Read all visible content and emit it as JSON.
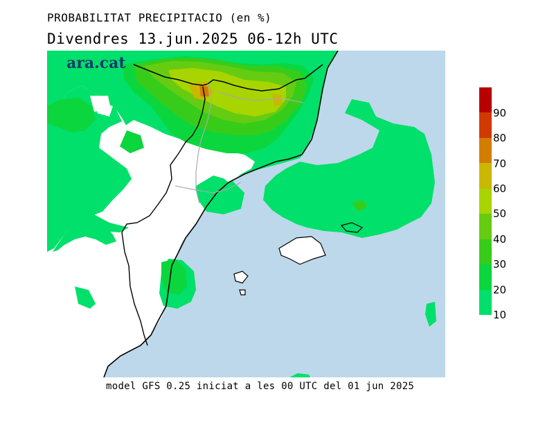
{
  "header": {
    "title": "PROBABILITAT PRECIPITACIO (en %)",
    "subtitle": "Divendres  13.jun.2025 06-12h UTC"
  },
  "logo": {
    "text": "ara.cat"
  },
  "footer": {
    "model_info": "model GFS 0.25 iniciat a les 00 UTC del 01 jun 2025"
  },
  "legend": {
    "labels": [
      "90",
      "80",
      "70",
      "60",
      "50",
      "40",
      "30",
      "20",
      "10"
    ],
    "colors": {
      "p90": "#b80000",
      "p80": "#d03a00",
      "p70": "#d37d00",
      "p60": "#c9b700",
      "p50": "#a8d400",
      "p40": "#65cc12",
      "p30": "#38cc1a",
      "p20": "#0cd63e",
      "p10": "#00e06a"
    }
  },
  "map_colors": {
    "sea": "#bcd8ea",
    "land": "#ffffff"
  }
}
